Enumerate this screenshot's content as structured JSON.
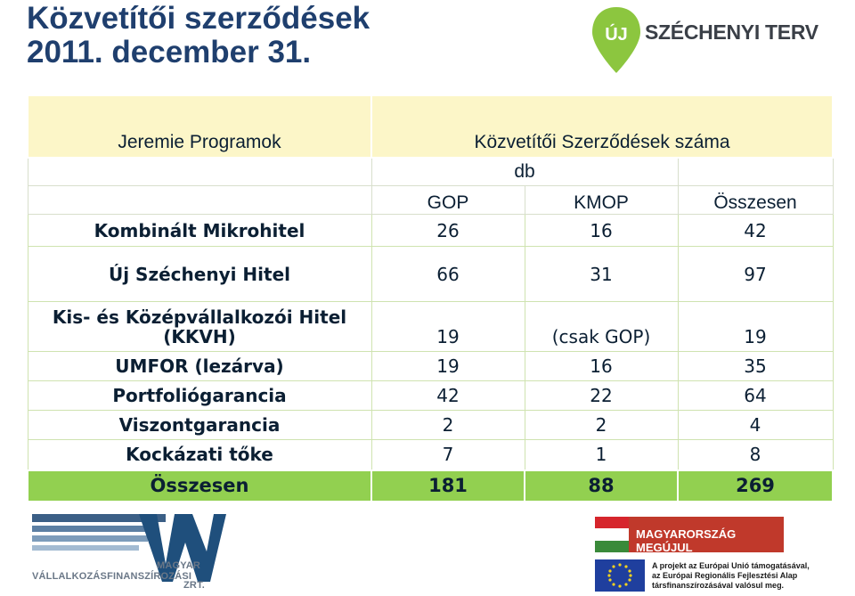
{
  "title": {
    "line1": "Közvetítői szerződések",
    "line2": "2011. december 31."
  },
  "logo_szechenyi": {
    "badge": "ÚJ",
    "text": "SZÉCHENYI TERV",
    "color": "#8cc63f"
  },
  "table": {
    "header_program": "Jeremie Programok",
    "header_count": "Közvetítői Szerződések száma",
    "unit": "db",
    "col_gop": "GOP",
    "col_kmop": "KMOP",
    "col_total": "Összesen",
    "rows": [
      {
        "label": "Kombinált Mikrohitel",
        "gop": "26",
        "kmop": "16",
        "total": "42"
      },
      {
        "label": "Új Széchenyi Hitel",
        "gop": "66",
        "kmop": "31",
        "total": "97"
      },
      {
        "label": "Kis- és Középvállalkozói Hitel (KKVH)",
        "gop": "19",
        "kmop": "(csak GOP)",
        "total": "19"
      },
      {
        "label": "UMFOR (lezárva)",
        "gop": "19",
        "kmop": "16",
        "total": "35"
      },
      {
        "label": "Portfoliógarancia",
        "gop": "42",
        "kmop": "22",
        "total": "64"
      },
      {
        "label": "Viszontgarancia",
        "gop": "2",
        "kmop": "2",
        "total": "4"
      },
      {
        "label": "Kockázati tőke",
        "gop": "7",
        "kmop": "1",
        "total": "8"
      }
    ],
    "sum": {
      "label": "Összesen",
      "gop": "181",
      "kmop": "88",
      "total": "269"
    },
    "colors": {
      "header_bg": "#fcf6c8",
      "sum_bg": "#92d050"
    }
  },
  "logo_mv": {
    "line1": "MAGYAR",
    "line2": "VÁLLALKOZÁSFINANSZÍROZÁSI",
    "line3": "ZRT."
  },
  "logo_mm": {
    "text": "MAGYARORSZÁG MEGÚJUL"
  },
  "eu_note": {
    "line1": "A projekt az Európai Unió támogatásával,",
    "line2": "az Európai Regionális Fejlesztési Alap",
    "line3": "társfinanszírozásával valósul meg."
  }
}
